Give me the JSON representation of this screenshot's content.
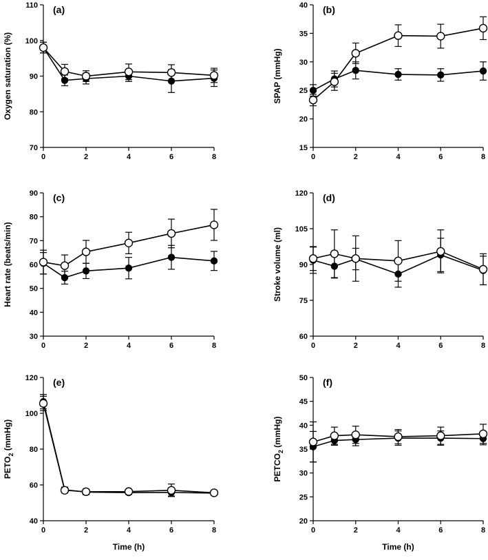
{
  "chart_data": [
    {
      "type": "line",
      "panel_label": "(a)",
      "ylabel": "Oxygen saturation (%)",
      "xlabel": "",
      "xlim": [
        0,
        8
      ],
      "ylim": [
        70,
        110
      ],
      "x_ticks": [
        "0",
        "2",
        "4",
        "6",
        "8"
      ],
      "y_ticks": [
        "70",
        "80",
        "90",
        "100",
        "110"
      ],
      "x": [
        0,
        1,
        2,
        4,
        6,
        8
      ],
      "series": [
        {
          "name": "open",
          "marker": "open-circle",
          "values": [
            98,
            91.3,
            90,
            91.2,
            91,
            90.2
          ],
          "error": [
            1.5,
            2,
            1.5,
            2.2,
            2.2,
            2
          ]
        },
        {
          "name": "filled",
          "marker": "filled-circle",
          "values": [
            98,
            88.8,
            89.3,
            90,
            88.6,
            89.4
          ],
          "error": [
            1.5,
            1.5,
            1.5,
            1.5,
            3.2,
            2.3
          ]
        }
      ]
    },
    {
      "type": "line",
      "panel_label": "(b)",
      "ylabel": "SPAP (mmHg)",
      "xlabel": "",
      "xlim": [
        0,
        8
      ],
      "ylim": [
        15,
        40
      ],
      "x_ticks": [
        "0",
        "2",
        "4",
        "6",
        "8"
      ],
      "y_ticks": [
        "15",
        "20",
        "25",
        "30",
        "35",
        "40"
      ],
      "x": [
        0,
        1,
        2,
        4,
        6,
        8
      ],
      "series": [
        {
          "name": "open",
          "marker": "open-circle",
          "values": [
            23.3,
            26.5,
            31.5,
            34.6,
            34.5,
            35.9
          ],
          "error": [
            1,
            1.5,
            1.8,
            1.9,
            2.1,
            2
          ]
        },
        {
          "name": "filled",
          "marker": "filled-circle",
          "values": [
            25,
            27,
            28.5,
            27.8,
            27.7,
            28.4
          ],
          "error": [
            1,
            1.4,
            1.5,
            1,
            1.1,
            1.6
          ]
        }
      ]
    },
    {
      "type": "line",
      "panel_label": "(c)",
      "ylabel": "Heart rate (beats/min)",
      "xlabel": "",
      "xlim": [
        0,
        8
      ],
      "ylim": [
        30,
        90
      ],
      "x_ticks": [
        "0",
        "2",
        "4",
        "6",
        "8"
      ],
      "y_ticks": [
        "30",
        "40",
        "50",
        "60",
        "70",
        "80",
        "90"
      ],
      "x": [
        0,
        1,
        2,
        4,
        6,
        8
      ],
      "series": [
        {
          "name": "open",
          "marker": "open-circle",
          "values": [
            61,
            59.5,
            65.3,
            69,
            73,
            76.6
          ],
          "error": [
            5,
            4.5,
            4.8,
            4.5,
            6,
            6.5
          ]
        },
        {
          "name": "filled",
          "marker": "filled-circle",
          "values": [
            60.5,
            54.5,
            57.3,
            58.5,
            63,
            61.5
          ],
          "error": [
            4.5,
            2.7,
            3.2,
            4.5,
            5,
            4
          ]
        }
      ]
    },
    {
      "type": "line",
      "panel_label": "(d)",
      "ylabel": "Stroke volume (ml)",
      "xlabel": "",
      "xlim": [
        0,
        8
      ],
      "ylim": [
        60,
        120
      ],
      "x_ticks": [
        "0",
        "2",
        "4",
        "6",
        "8"
      ],
      "y_ticks": [
        "60",
        "75",
        "90",
        "105",
        "120"
      ],
      "x": [
        0,
        1,
        2,
        4,
        6,
        8
      ],
      "series": [
        {
          "name": "open",
          "marker": "open-circle",
          "values": [
            92.5,
            94.5,
            92.5,
            91.5,
            95.5,
            88
          ],
          "error": [
            5,
            10,
            9.5,
            8.5,
            9,
            6.5
          ]
        },
        {
          "name": "filled",
          "marker": "filled-circle",
          "values": [
            91.8,
            89.3,
            92.3,
            86,
            94,
            87.5
          ],
          "error": [
            5.5,
            5,
            4.5,
            5.5,
            7,
            6
          ]
        }
      ]
    },
    {
      "type": "line",
      "panel_label": "(e)",
      "ylabel": "PETO2 (mmHg)",
      "ylabel_main": "PETO",
      "ylabel_sub": "2",
      "ylabel_tail": " (mmHg)",
      "xlabel": "Time (h)",
      "xlim": [
        0,
        8
      ],
      "ylim": [
        40,
        120
      ],
      "x_ticks": [
        "0",
        "2",
        "4",
        "6",
        "8"
      ],
      "y_ticks": [
        "40",
        "60",
        "80",
        "100",
        "120"
      ],
      "x": [
        0,
        1,
        2,
        4,
        6,
        8
      ],
      "series": [
        {
          "name": "open",
          "marker": "open-circle",
          "values": [
            105.5,
            57,
            56.2,
            56.3,
            57,
            55.6
          ],
          "error": [
            4,
            1.5,
            1.5,
            1,
            3.5,
            0.8
          ]
        },
        {
          "name": "filled",
          "marker": "filled-circle",
          "values": [
            106.5,
            57.3,
            56,
            55.7,
            55.8,
            55.4
          ],
          "error": [
            4,
            1.5,
            1.5,
            1,
            2,
            0.8
          ]
        }
      ]
    },
    {
      "type": "line",
      "panel_label": "(f)",
      "ylabel": "PETCO2 (mmHg)",
      "ylabel_main": "PETCO",
      "ylabel_sub": "2",
      "ylabel_tail": " (mmHg)",
      "xlabel": "Time (h)",
      "xlim": [
        0,
        8
      ],
      "ylim": [
        20,
        50
      ],
      "x_ticks": [
        "0",
        "2",
        "4",
        "6",
        "8"
      ],
      "y_ticks": [
        "20",
        "25",
        "30",
        "35",
        "40",
        "45",
        "50"
      ],
      "x": [
        0,
        1,
        2,
        4,
        6,
        8
      ],
      "series": [
        {
          "name": "open",
          "marker": "open-circle",
          "values": [
            36.5,
            37.8,
            38,
            37.6,
            37.8,
            38.2
          ],
          "error": [
            4.2,
            1.8,
            1.8,
            1.5,
            1.8,
            2
          ]
        },
        {
          "name": "filled",
          "marker": "filled-circle",
          "values": [
            35.5,
            36.8,
            37,
            37.3,
            37.3,
            37.2
          ],
          "error": [
            3.2,
            1,
            1.3,
            1.5,
            1.5,
            1.3
          ]
        }
      ]
    }
  ]
}
